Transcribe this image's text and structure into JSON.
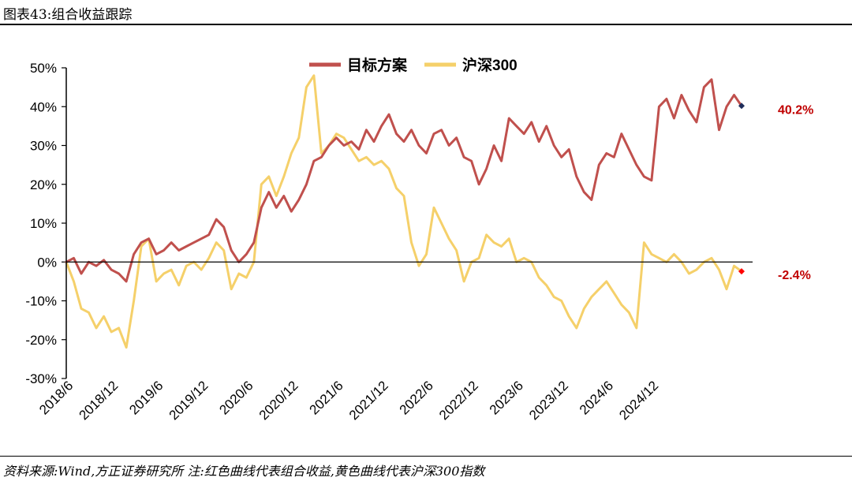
{
  "header": {
    "title": "图表43:组合收益跟踪"
  },
  "footer": {
    "source": "资料来源:Wind,方正证券研究所 注:红色曲线代表组合收益,黄色曲线代表沪深300指数"
  },
  "chart_data": {
    "type": "line",
    "title": "",
    "xlabel": "",
    "ylabel": "",
    "ylim": [
      -30,
      50
    ],
    "y_ticks": [
      50,
      40,
      30,
      20,
      10,
      0,
      -10,
      -20,
      -30
    ],
    "y_tick_labels": [
      "50%",
      "40%",
      "30%",
      "20%",
      "10%",
      "0%",
      "-10%",
      "-20%",
      "-30%"
    ],
    "x_tick_labels": [
      "2018/6",
      "2018/12",
      "2019/6",
      "2019/12",
      "2020/6",
      "2020/12",
      "2021/6",
      "2021/12",
      "2022/6",
      "2022/12",
      "2023/6",
      "2023/12",
      "2024/6",
      "2024/12"
    ],
    "x_tick_dates": [
      "2018-06",
      "2018-12",
      "2019-06",
      "2019-12",
      "2020-06",
      "2020-12",
      "2021-06",
      "2021-12",
      "2022-06",
      "2022-12",
      "2023-06",
      "2023-12",
      "2024-06",
      "2024-12"
    ],
    "legend_position": "top-center",
    "series": [
      {
        "name": "目标方案",
        "color": "#C0504D",
        "end_label": "40.2%",
        "end_marker_color": "#1F2D5A",
        "points": [
          [
            "2018-05",
            0
          ],
          [
            "2018-06",
            1
          ],
          [
            "2018-07",
            -3
          ],
          [
            "2018-08",
            0
          ],
          [
            "2018-09",
            -1
          ],
          [
            "2018-10",
            0.5
          ],
          [
            "2018-11",
            -2
          ],
          [
            "2018-12",
            -3
          ],
          [
            "2019-01",
            -5
          ],
          [
            "2019-02",
            2
          ],
          [
            "2019-03",
            5
          ],
          [
            "2019-04",
            6
          ],
          [
            "2019-05",
            2
          ],
          [
            "2019-06",
            3
          ],
          [
            "2019-07",
            5
          ],
          [
            "2019-08",
            3
          ],
          [
            "2019-09",
            4
          ],
          [
            "2019-10",
            5
          ],
          [
            "2019-11",
            6
          ],
          [
            "2019-12",
            7
          ],
          [
            "2020-01",
            11
          ],
          [
            "2020-02",
            9
          ],
          [
            "2020-03",
            3
          ],
          [
            "2020-04",
            0
          ],
          [
            "2020-05",
            2
          ],
          [
            "2020-06",
            5
          ],
          [
            "2020-07",
            14
          ],
          [
            "2020-08",
            18
          ],
          [
            "2020-09",
            14
          ],
          [
            "2020-10",
            17
          ],
          [
            "2020-11",
            13
          ],
          [
            "2020-12",
            16
          ],
          [
            "2021-01",
            20
          ],
          [
            "2021-02",
            26
          ],
          [
            "2021-03",
            27
          ],
          [
            "2021-04",
            30
          ],
          [
            "2021-05",
            32
          ],
          [
            "2021-06",
            30
          ],
          [
            "2021-07",
            31
          ],
          [
            "2021-08",
            29
          ],
          [
            "2021-09",
            34
          ],
          [
            "2021-10",
            31
          ],
          [
            "2021-11",
            35
          ],
          [
            "2021-12",
            38
          ],
          [
            "2022-01",
            33
          ],
          [
            "2022-02",
            31
          ],
          [
            "2022-03",
            34
          ],
          [
            "2022-04",
            30
          ],
          [
            "2022-05",
            28
          ],
          [
            "2022-06",
            33
          ],
          [
            "2022-07",
            34
          ],
          [
            "2022-08",
            30
          ],
          [
            "2022-09",
            32
          ],
          [
            "2022-10",
            27
          ],
          [
            "2022-11",
            26
          ],
          [
            "2022-12",
            20
          ],
          [
            "2023-01",
            24
          ],
          [
            "2023-02",
            30
          ],
          [
            "2023-03",
            26
          ],
          [
            "2023-04",
            37
          ],
          [
            "2023-05",
            35
          ],
          [
            "2023-06",
            33
          ],
          [
            "2023-07",
            36
          ],
          [
            "2023-08",
            31
          ],
          [
            "2023-09",
            35
          ],
          [
            "2023-10",
            30
          ],
          [
            "2023-11",
            27
          ],
          [
            "2023-12",
            29
          ],
          [
            "2024-01",
            22
          ],
          [
            "2024-02",
            18
          ],
          [
            "2024-03",
            16
          ],
          [
            "2024-04",
            25
          ],
          [
            "2024-05",
            28
          ],
          [
            "2024-06",
            27
          ],
          [
            "2024-07",
            33
          ],
          [
            "2024-08",
            29
          ],
          [
            "2024-09",
            25
          ],
          [
            "2024-10",
            22
          ],
          [
            "2024-11",
            21
          ],
          [
            "2024-12",
            40
          ],
          [
            "2025-01",
            42
          ],
          [
            "2025-02",
            37
          ],
          [
            "2025-03",
            43
          ],
          [
            "2025-04",
            39
          ],
          [
            "2025-05",
            36
          ],
          [
            "2025-06",
            45
          ],
          [
            "2025-07",
            47
          ],
          [
            "2025-08",
            34
          ],
          [
            "2025-09",
            40
          ],
          [
            "2025-10",
            43
          ],
          [
            "2025-11",
            40.2
          ]
        ]
      },
      {
        "name": "沪深300",
        "color": "#F5D06A",
        "end_label": "-2.4%",
        "end_marker_color": "#FF0000",
        "points": [
          [
            "2018-05",
            0
          ],
          [
            "2018-06",
            -5
          ],
          [
            "2018-07",
            -12
          ],
          [
            "2018-08",
            -13
          ],
          [
            "2018-09",
            -17
          ],
          [
            "2018-10",
            -14
          ],
          [
            "2018-11",
            -18
          ],
          [
            "2018-12",
            -17
          ],
          [
            "2019-01",
            -22
          ],
          [
            "2019-02",
            -10
          ],
          [
            "2019-03",
            4
          ],
          [
            "2019-04",
            6
          ],
          [
            "2019-05",
            -5
          ],
          [
            "2019-06",
            -3
          ],
          [
            "2019-07",
            -2
          ],
          [
            "2019-08",
            -6
          ],
          [
            "2019-09",
            -1
          ],
          [
            "2019-10",
            0
          ],
          [
            "2019-11",
            -2
          ],
          [
            "2019-12",
            1
          ],
          [
            "2020-01",
            5
          ],
          [
            "2020-02",
            3
          ],
          [
            "2020-03",
            -7
          ],
          [
            "2020-04",
            -3
          ],
          [
            "2020-05",
            -4
          ],
          [
            "2020-06",
            0
          ],
          [
            "2020-07",
            20
          ],
          [
            "2020-08",
            22
          ],
          [
            "2020-09",
            17
          ],
          [
            "2020-10",
            22
          ],
          [
            "2020-11",
            28
          ],
          [
            "2020-12",
            32
          ],
          [
            "2021-01",
            45
          ],
          [
            "2021-02",
            48
          ],
          [
            "2021-03",
            28
          ],
          [
            "2021-04",
            30
          ],
          [
            "2021-05",
            33
          ],
          [
            "2021-06",
            32
          ],
          [
            "2021-07",
            29
          ],
          [
            "2021-08",
            26
          ],
          [
            "2021-09",
            27
          ],
          [
            "2021-10",
            25
          ],
          [
            "2021-11",
            26
          ],
          [
            "2021-12",
            24
          ],
          [
            "2022-01",
            19
          ],
          [
            "2022-02",
            17
          ],
          [
            "2022-03",
            5
          ],
          [
            "2022-04",
            -1
          ],
          [
            "2022-05",
            2
          ],
          [
            "2022-06",
            14
          ],
          [
            "2022-07",
            10
          ],
          [
            "2022-08",
            6
          ],
          [
            "2022-09",
            3
          ],
          [
            "2022-10",
            -5
          ],
          [
            "2022-11",
            0
          ],
          [
            "2022-12",
            1
          ],
          [
            "2023-01",
            7
          ],
          [
            "2023-02",
            5
          ],
          [
            "2023-03",
            4
          ],
          [
            "2023-04",
            6
          ],
          [
            "2023-05",
            0
          ],
          [
            "2023-06",
            1
          ],
          [
            "2023-07",
            0
          ],
          [
            "2023-08",
            -4
          ],
          [
            "2023-09",
            -6
          ],
          [
            "2023-10",
            -9
          ],
          [
            "2023-11",
            -10
          ],
          [
            "2023-12",
            -14
          ],
          [
            "2024-01",
            -17
          ],
          [
            "2024-02",
            -12
          ],
          [
            "2024-03",
            -9
          ],
          [
            "2024-04",
            -7
          ],
          [
            "2024-05",
            -5
          ],
          [
            "2024-06",
            -8
          ],
          [
            "2024-07",
            -11
          ],
          [
            "2024-08",
            -13
          ],
          [
            "2024-09",
            -17
          ],
          [
            "2024-10",
            5
          ],
          [
            "2024-11",
            2
          ],
          [
            "2024-12",
            1
          ],
          [
            "2025-01",
            0
          ],
          [
            "2025-02",
            2
          ],
          [
            "2025-03",
            0
          ],
          [
            "2025-04",
            -3
          ],
          [
            "2025-05",
            -2
          ],
          [
            "2025-06",
            0
          ],
          [
            "2025-07",
            1
          ],
          [
            "2025-08",
            -2
          ],
          [
            "2025-09",
            -7
          ],
          [
            "2025-10",
            -1
          ],
          [
            "2025-11",
            -2.4
          ]
        ]
      }
    ]
  }
}
